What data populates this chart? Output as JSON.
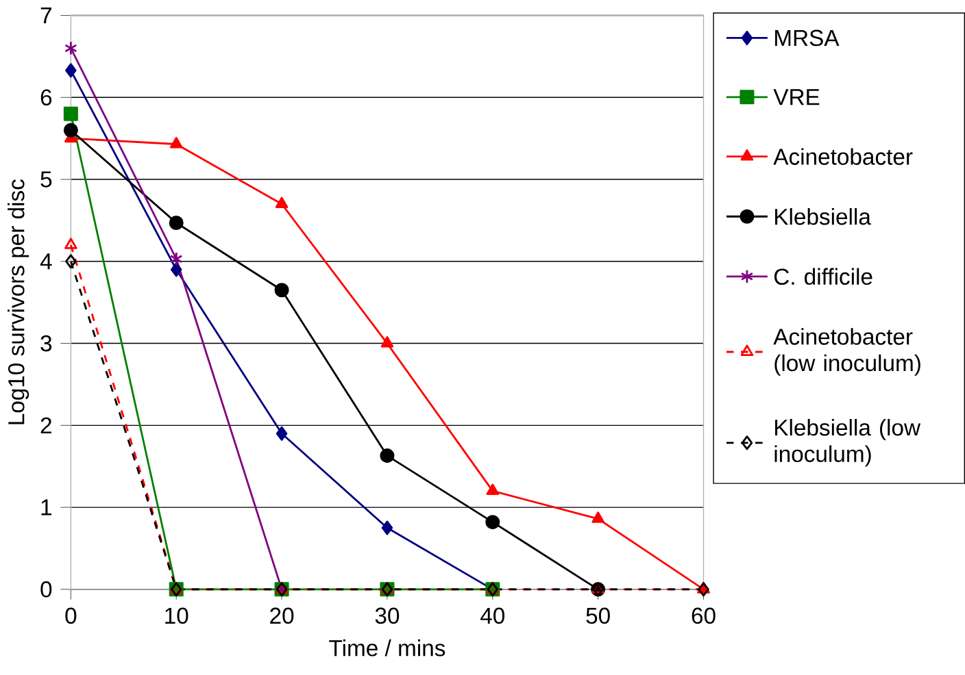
{
  "chart_data": {
    "type": "line",
    "xlabel": "Time / mins",
    "ylabel": "Log10 survivors per disc",
    "x": [
      0,
      10,
      20,
      30,
      40,
      50,
      60
    ],
    "series": [
      {
        "name": "MRSA",
        "color": "#000080",
        "marker": "diamond",
        "line_style": "solid",
        "values": [
          6.33,
          3.9,
          1.9,
          0.75,
          0,
          null,
          null
        ]
      },
      {
        "name": "VRE",
        "color": "#008000",
        "marker": "square",
        "line_style": "solid",
        "values": [
          5.8,
          0,
          0,
          0,
          0,
          null,
          null
        ]
      },
      {
        "name": "Acinetobacter",
        "color": "#ff0000",
        "marker": "triangle",
        "line_style": "solid",
        "values": [
          5.5,
          5.43,
          4.7,
          3.0,
          1.2,
          0.86,
          0
        ]
      },
      {
        "name": "Klebsiella",
        "color": "#000000",
        "marker": "circle",
        "line_style": "solid",
        "values": [
          5.6,
          4.47,
          3.65,
          1.63,
          0.82,
          0,
          null
        ]
      },
      {
        "name": "C. difficile",
        "color": "#800080",
        "marker": "cross",
        "line_style": "solid",
        "values": [
          6.6,
          4.03,
          0,
          null,
          null,
          null,
          null
        ]
      },
      {
        "name": "Acinetobacter (low inoculum)",
        "color": "#ff0000",
        "marker": "triangle-open",
        "line_style": "dashed",
        "values": [
          4.2,
          0,
          0,
          0,
          0,
          0,
          0
        ]
      },
      {
        "name": "Klebsiella (low inoculum)",
        "color": "#000000",
        "marker": "diamond-open",
        "line_style": "dashed",
        "values": [
          4.0,
          0,
          0,
          0,
          0,
          0,
          0
        ]
      }
    ],
    "xlim": [
      0,
      60
    ],
    "xticks": [
      0,
      10,
      20,
      30,
      40,
      50,
      60
    ],
    "ylim": [
      0,
      7
    ],
    "yticks": [
      0,
      1,
      2,
      3,
      4,
      5,
      6,
      7
    ],
    "grid": "y",
    "legend": "right"
  }
}
